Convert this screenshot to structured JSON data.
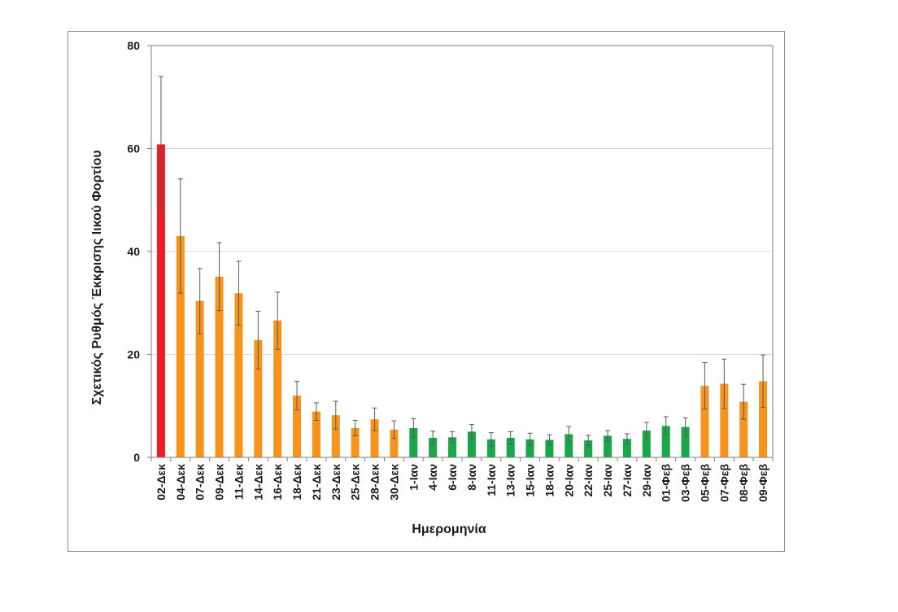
{
  "chart_data": {
    "type": "bar",
    "title": "",
    "xlabel": "Ημερομηνία",
    "ylabel": "Σχετικός Ρυθμός Έκκρισης Ιικού Φορτίου",
    "ylim": [
      0,
      80
    ],
    "yticks": [
      "0",
      "20",
      "40",
      "60",
      "80"
    ],
    "grid": true,
    "legend": "none",
    "categories": [
      "02-Δεκ",
      "04-Δεκ",
      "07-Δεκ",
      "09-Δεκ",
      "11-Δεκ",
      "14-Δεκ",
      "16-Δεκ",
      "18-Δεκ",
      "21-Δεκ",
      "23-Δεκ",
      "25-Δεκ",
      "28-Δεκ",
      "30-Δεκ",
      "1-Ιαν",
      "4-Ιαν",
      "6-Ιαν",
      "8-Ιαν",
      "11-Ιαν",
      "13-Ιαν",
      "15-Ιαν",
      "18-Ιαν",
      "20-Ιαν",
      "22-Ιαν",
      "25-Ιαν",
      "27-Ιαν",
      "29-Ιαν",
      "01-Φεβ",
      "03-Φεβ",
      "05-Φεβ",
      "07-Φεβ",
      "08-Φεβ",
      "09-Φεβ"
    ],
    "values": [
      60.8,
      43.0,
      30.4,
      35.1,
      31.9,
      22.8,
      26.6,
      12.0,
      8.9,
      8.2,
      5.7,
      7.4,
      5.4,
      5.7,
      3.8,
      3.9,
      5.0,
      3.5,
      3.8,
      3.5,
      3.4,
      4.5,
      3.3,
      4.2,
      3.6,
      5.2,
      6.1,
      5.9,
      13.9,
      14.3,
      10.8,
      14.8
    ],
    "error_upper": [
      74.0,
      54.1,
      36.7,
      41.7,
      38.1,
      28.4,
      32.1,
      14.8,
      10.6,
      10.9,
      7.2,
      9.6,
      7.1,
      7.5,
      5.1,
      5.0,
      6.4,
      4.8,
      5.0,
      4.7,
      4.4,
      6.0,
      4.3,
      5.2,
      4.6,
      6.8,
      7.9,
      7.7,
      18.4,
      19.1,
      14.2,
      19.9
    ],
    "error_lower": [
      47.5,
      31.9,
      24.0,
      28.5,
      25.7,
      17.2,
      21.0,
      9.2,
      7.2,
      5.5,
      4.2,
      5.2,
      3.7,
      3.9,
      2.5,
      2.8,
      3.6,
      2.2,
      2.6,
      2.3,
      2.4,
      3.0,
      2.3,
      3.2,
      2.6,
      3.6,
      4.3,
      4.1,
      9.4,
      9.5,
      7.4,
      9.7
    ],
    "bar_colors": [
      "#ee1c25",
      "#f7941d",
      "#f7941d",
      "#f7941d",
      "#f7941d",
      "#f7941d",
      "#f7941d",
      "#f7941d",
      "#f7941d",
      "#f7941d",
      "#f7941d",
      "#f7941d",
      "#f7941d",
      "#1aa64a",
      "#1aa64a",
      "#1aa64a",
      "#1aa64a",
      "#1aa64a",
      "#1aa64a",
      "#1aa64a",
      "#1aa64a",
      "#1aa64a",
      "#1aa64a",
      "#1aa64a",
      "#1aa64a",
      "#1aa64a",
      "#1aa64a",
      "#1aa64a",
      "#f7941d",
      "#f7941d",
      "#f7941d",
      "#f7941d"
    ],
    "colors": {
      "axis": "#7f7f7f",
      "grid": "#d9d9d9",
      "error_bar": "#595959"
    }
  }
}
